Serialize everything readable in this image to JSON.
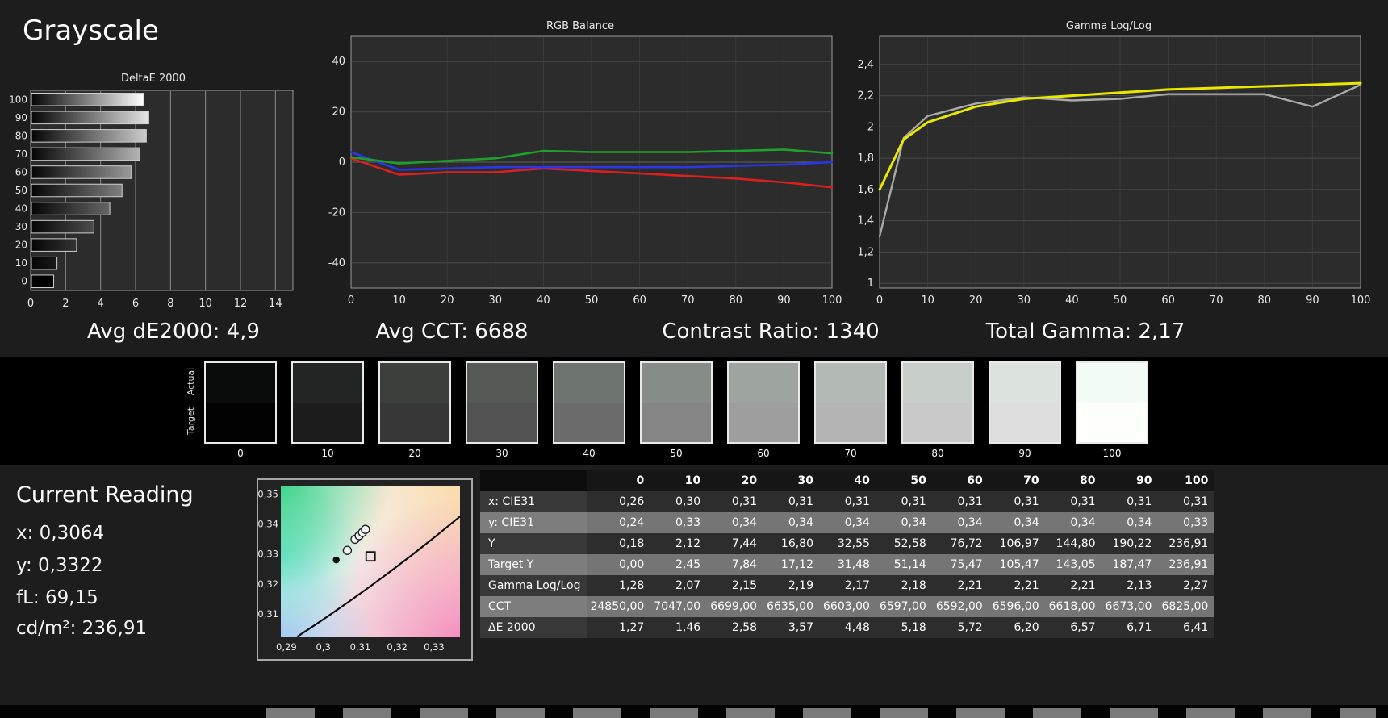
{
  "page": {
    "title": "Grayscale"
  },
  "stats": {
    "avg_de2000": "Avg dE2000: 4,9",
    "avg_cct": "Avg CCT: 6688",
    "contrast_ratio": "Contrast Ratio: 1340",
    "total_gamma": "Total Gamma: 2,17"
  },
  "chart_data": [
    {
      "id": "deltae-bars",
      "type": "bar",
      "title": "DeltaE 2000",
      "orientation": "horizontal",
      "categories": [
        100,
        90,
        80,
        70,
        60,
        50,
        40,
        30,
        20,
        10,
        0
      ],
      "values": [
        6.41,
        6.71,
        6.57,
        6.2,
        5.72,
        5.18,
        4.48,
        3.57,
        2.58,
        1.46,
        1.27
      ],
      "xlim": [
        0,
        15
      ],
      "x_ticks": [
        0,
        2,
        4,
        6,
        8,
        10,
        12,
        14
      ]
    },
    {
      "id": "rgb-balance",
      "type": "line",
      "title": "RGB Balance",
      "x": [
        0,
        10,
        20,
        30,
        40,
        50,
        60,
        70,
        80,
        90,
        100
      ],
      "x_ticks": [
        0,
        10,
        20,
        30,
        40,
        50,
        60,
        70,
        80,
        90,
        100
      ],
      "ylim": [
        -50,
        50
      ],
      "y_ticks": [
        {
          "v": 40,
          "label": "40"
        },
        {
          "v": 20,
          "label": "20"
        },
        {
          "v": 0,
          "label": "0"
        },
        {
          "v": -20,
          "label": "-20"
        },
        {
          "v": -40,
          "label": "-40"
        }
      ],
      "series": [
        {
          "name": "red-balance",
          "color": "#dd1f1f",
          "values": [
            1.5,
            -5,
            -4,
            -4,
            -2.5,
            -3.5,
            -4.5,
            -5.5,
            -6.5,
            -8,
            -10
          ]
        },
        {
          "name": "blue-balance",
          "color": "#2a35e6",
          "values": [
            4,
            -3,
            -2.5,
            -2,
            -2,
            -2,
            -2,
            -2,
            -1.5,
            -1,
            0
          ]
        },
        {
          "name": "green-balance",
          "color": "#1ea12c",
          "values": [
            2,
            -0.5,
            0.5,
            1.5,
            4.5,
            4,
            4,
            4,
            4.5,
            5,
            3.5
          ]
        }
      ]
    },
    {
      "id": "gamma-loglog",
      "type": "line",
      "title": "Gamma Log/Log",
      "x_ticks": [
        0,
        10,
        20,
        30,
        40,
        50,
        60,
        70,
        80,
        90,
        100
      ],
      "ylim": [
        0.97,
        2.58
      ],
      "y_ticks": [
        {
          "v": 2.4,
          "label": "2,4"
        },
        {
          "v": 2.2,
          "label": "2,2"
        },
        {
          "v": 2,
          "label": "2"
        },
        {
          "v": 1.8,
          "label": "1,8"
        },
        {
          "v": 1.6,
          "label": "1,6"
        },
        {
          "v": 1.4,
          "label": "1,4"
        },
        {
          "v": 1.2,
          "label": "1,2"
        },
        {
          "v": 1,
          "label": "1"
        }
      ],
      "series": [
        {
          "name": "measured-gamma",
          "color": "#a9a9a9",
          "width": 2.4,
          "x": [
            0,
            5,
            10,
            20,
            30,
            40,
            50,
            60,
            70,
            80,
            90,
            100
          ],
          "values": [
            1.3,
            1.93,
            2.07,
            2.15,
            2.19,
            2.17,
            2.18,
            2.21,
            2.21,
            2.21,
            2.13,
            2.27
          ]
        },
        {
          "name": "target-gamma",
          "color": "#e9e900",
          "width": 3,
          "x": [
            0,
            5,
            10,
            20,
            30,
            40,
            50,
            60,
            70,
            80,
            90,
            100
          ],
          "values": [
            1.6,
            1.92,
            2.03,
            2.13,
            2.18,
            2.2,
            2.22,
            2.24,
            2.25,
            2.26,
            2.27,
            2.28
          ]
        }
      ]
    },
    {
      "id": "cie-chromaticity",
      "type": "scatter",
      "xlim": [
        0.2885,
        0.337
      ],
      "ylim": [
        0.3025,
        0.3525
      ],
      "x_ticks": [
        {
          "v": 0.29,
          "label": "0,29"
        },
        {
          "v": 0.3,
          "label": "0,3"
        },
        {
          "v": 0.31,
          "label": "0,31"
        },
        {
          "v": 0.32,
          "label": "0,32"
        },
        {
          "v": 0.33,
          "label": "0,33"
        }
      ],
      "y_ticks": [
        {
          "v": 0.35,
          "label": "0,35"
        },
        {
          "v": 0.34,
          "label": "0,34"
        },
        {
          "v": 0.33,
          "label": "0,33"
        },
        {
          "v": 0.32,
          "label": "0,32"
        },
        {
          "v": 0.31,
          "label": "0,31"
        }
      ],
      "locus": [
        [
          0.293,
          0.3025
        ],
        [
          0.3155,
          0.3205
        ],
        [
          0.337,
          0.3425
        ]
      ],
      "points": [
        {
          "x": 0.3035,
          "y": 0.328,
          "shape": "dot"
        },
        {
          "x": 0.3065,
          "y": 0.3312,
          "shape": "open"
        },
        {
          "x": 0.3086,
          "y": 0.3349,
          "shape": "open"
        },
        {
          "x": 0.3097,
          "y": 0.3361,
          "shape": "open"
        },
        {
          "x": 0.3106,
          "y": 0.3372,
          "shape": "open"
        },
        {
          "x": 0.3114,
          "y": 0.3382,
          "shape": "open"
        },
        {
          "x": 0.3128,
          "y": 0.3292,
          "shape": "square"
        }
      ]
    }
  ],
  "swatches": {
    "axis_labels": [
      "Actual",
      "Target"
    ],
    "steps": [
      "0",
      "10",
      "20",
      "30",
      "40",
      "50",
      "60",
      "70",
      "80",
      "90",
      "100"
    ],
    "actual_colors": [
      "#0a0c0b",
      "#222523",
      "#3b403c",
      "#555a56",
      "#6e746f",
      "#868c87",
      "#9ea49f",
      "#b3b9b4",
      "#c8cec9",
      "#dce2dd",
      "#f2fbf4"
    ],
    "target_colors": [
      "#010101",
      "#1b1c1b",
      "#363736",
      "#515251",
      "#6b6c6b",
      "#858585",
      "#9e9e9e",
      "#b4b4b4",
      "#c9c9c9",
      "#dddddd",
      "#fdfffd"
    ]
  },
  "current_reading": {
    "title": "Current Reading",
    "x": "x: 0,3064",
    "y": "y: 0,3322",
    "fl": "fL: 69,15",
    "cdm2": "cd/m²: 236,91"
  },
  "table": {
    "corner": "",
    "columns": [
      "0",
      "10",
      "20",
      "30",
      "40",
      "50",
      "60",
      "70",
      "80",
      "90",
      "100"
    ],
    "rows": [
      {
        "label": "x: CIE31",
        "values": [
          "0,26",
          "0,30",
          "0,31",
          "0,31",
          "0,31",
          "0,31",
          "0,31",
          "0,31",
          "0,31",
          "0,31",
          "0,31"
        ]
      },
      {
        "label": "y: CIE31",
        "values": [
          "0,24",
          "0,33",
          "0,34",
          "0,34",
          "0,34",
          "0,34",
          "0,34",
          "0,34",
          "0,34",
          "0,34",
          "0,33"
        ]
      },
      {
        "label": "Y",
        "values": [
          "0,18",
          "2,12",
          "7,44",
          "16,80",
          "32,55",
          "52,58",
          "76,72",
          "106,97",
          "144,80",
          "190,22",
          "236,91"
        ]
      },
      {
        "label": "Target Y",
        "values": [
          "0,00",
          "2,45",
          "7,84",
          "17,12",
          "31,48",
          "51,14",
          "75,47",
          "105,47",
          "143,05",
          "187,47",
          "236,91"
        ]
      },
      {
        "label": "Gamma Log/Log",
        "values": [
          "1,28",
          "2,07",
          "2,15",
          "2,19",
          "2,17",
          "2,18",
          "2,21",
          "2,21",
          "2,21",
          "2,13",
          "2,27"
        ]
      },
      {
        "label": "CCT",
        "values": [
          "24850,00",
          "7047,00",
          "6699,00",
          "6635,00",
          "6603,00",
          "6597,00",
          "6592,00",
          "6596,00",
          "6618,00",
          "6673,00",
          "6825,00"
        ]
      },
      {
        "label": "ΔE 2000",
        "values": [
          "1,27",
          "1,46",
          "2,58",
          "3,57",
          "4,48",
          "5,18",
          "5,72",
          "6,20",
          "6,57",
          "6,71",
          "6,41"
        ]
      }
    ]
  },
  "colors": {
    "background": "#1d1d1d",
    "strip_background": "#000000",
    "plot_background": "#2c2c2c",
    "plot_border": "#9a9a9a",
    "red": "#dd1f1f",
    "green": "#1ea12c",
    "blue": "#2a35e6",
    "gamma_yellow": "#e9e900",
    "gamma_gray": "#a9a9a9"
  }
}
